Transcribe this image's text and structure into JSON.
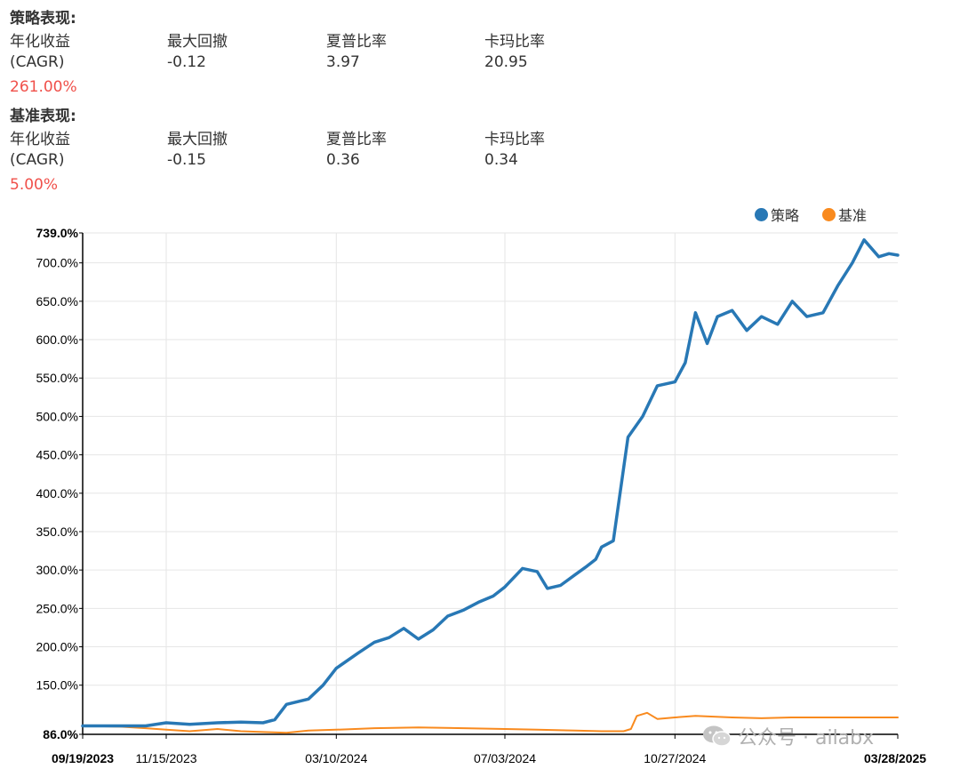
{
  "strategy_perf": {
    "title": "策略表现:",
    "cagr_label_line1": "年化收益",
    "cagr_label_line2": "(CAGR)",
    "cagr_value": "261.00%",
    "max_drawdown_label": "最大回撤",
    "max_drawdown_value": "-0.12",
    "sharpe_label": "夏普比率",
    "sharpe_value": "3.97",
    "calmar_label": "卡玛比率",
    "calmar_value": "20.95"
  },
  "benchmark_perf": {
    "title": "基准表现:",
    "cagr_label_line1": "年化收益",
    "cagr_label_line2": "(CAGR)",
    "cagr_value": "5.00%",
    "max_drawdown_label": "最大回撤",
    "max_drawdown_value": "-0.15",
    "sharpe_label": "夏普比率",
    "sharpe_value": "0.36",
    "calmar_label": "卡玛比率",
    "calmar_value": "0.34"
  },
  "legend": {
    "strategy": "策略",
    "benchmark": "基准"
  },
  "colors": {
    "strategy": "#2878b5",
    "benchmark": "#f98a1e",
    "highlight": "#f0504a"
  },
  "watermark": "公众号 · ailabx",
  "chart_data": {
    "type": "line",
    "ylim": [
      86,
      739
    ],
    "y_ticks": [
      "739.0%",
      "700.0%",
      "650.0%",
      "600.0%",
      "550.0%",
      "500.0%",
      "450.0%",
      "400.0%",
      "350.0%",
      "300.0%",
      "250.0%",
      "200.0%",
      "150.0%",
      "86.0%"
    ],
    "y_tick_values": [
      739,
      700,
      650,
      600,
      550,
      500,
      450,
      400,
      350,
      300,
      250,
      200,
      150,
      86
    ],
    "x_ticks": [
      "09/19/2023",
      "11/15/2023",
      "03/10/2024",
      "07/03/2024",
      "10/27/2024",
      "03/28/2025"
    ],
    "x_tick_values": [
      "2023-09-19",
      "2023-11-15",
      "2024-03-10",
      "2024-07-03",
      "2024-10-27",
      "2025-03-28"
    ],
    "series": [
      {
        "name": "策略",
        "x": [
          "2023-09-19",
          "2023-10-15",
          "2023-11-01",
          "2023-11-15",
          "2023-12-01",
          "2023-12-20",
          "2024-01-05",
          "2024-01-20",
          "2024-01-28",
          "2024-02-05",
          "2024-02-20",
          "2024-03-01",
          "2024-03-10",
          "2024-03-25",
          "2024-04-05",
          "2024-04-15",
          "2024-04-25",
          "2024-05-05",
          "2024-05-15",
          "2024-05-25",
          "2024-06-05",
          "2024-06-15",
          "2024-06-25",
          "2024-07-03",
          "2024-07-15",
          "2024-07-25",
          "2024-08-01",
          "2024-08-10",
          "2024-08-20",
          "2024-08-28",
          "2024-09-03",
          "2024-09-07",
          "2024-09-15",
          "2024-09-25",
          "2024-10-05",
          "2024-10-15",
          "2024-10-27",
          "2024-11-03",
          "2024-11-10",
          "2024-11-18",
          "2024-11-25",
          "2024-12-05",
          "2024-12-15",
          "2024-12-25",
          "2025-01-05",
          "2025-01-15",
          "2025-01-25",
          "2025-02-05",
          "2025-02-15",
          "2025-02-25",
          "2025-03-05",
          "2025-03-15",
          "2025-03-22",
          "2025-03-28"
        ],
        "values": [
          97,
          97,
          97,
          101,
          99,
          101,
          102,
          101,
          105,
          125,
          132,
          150,
          172,
          192,
          206,
          212,
          224,
          210,
          222,
          240,
          248,
          258,
          266,
          278,
          302,
          298,
          276,
          280,
          294,
          305,
          314,
          330,
          338,
          473,
          500,
          540,
          545,
          570,
          635,
          595,
          630,
          638,
          612,
          630,
          620,
          650,
          630,
          635,
          670,
          700,
          730,
          708,
          712,
          710
        ]
      },
      {
        "name": "基准",
        "x": [
          "2023-09-19",
          "2023-10-15",
          "2023-11-01",
          "2023-11-15",
          "2023-12-01",
          "2023-12-20",
          "2024-01-05",
          "2024-01-20",
          "2024-02-05",
          "2024-02-20",
          "2024-03-10",
          "2024-04-05",
          "2024-05-05",
          "2024-06-05",
          "2024-07-03",
          "2024-07-25",
          "2024-08-20",
          "2024-09-07",
          "2024-09-15",
          "2024-09-22",
          "2024-09-27",
          "2024-10-01",
          "2024-10-08",
          "2024-10-15",
          "2024-10-27",
          "2024-11-10",
          "2024-12-05",
          "2024-12-25",
          "2025-01-15",
          "2025-02-15",
          "2025-03-05",
          "2025-03-28"
        ],
        "values": [
          97,
          96,
          94,
          92,
          90,
          93,
          90,
          89,
          88,
          91,
          92,
          94,
          95,
          94,
          93,
          92,
          91,
          90,
          90,
          90,
          93,
          110,
          114,
          106,
          108,
          110,
          108,
          107,
          108,
          108,
          108,
          108
        ]
      }
    ]
  }
}
